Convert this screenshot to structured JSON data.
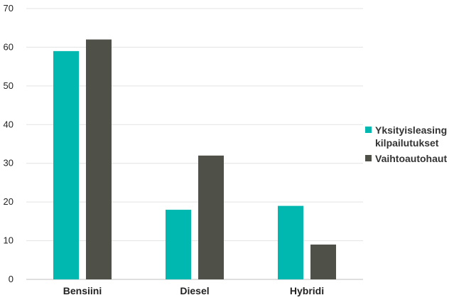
{
  "chart_data": {
    "type": "bar",
    "categories": [
      "Bensiini",
      "Diesel",
      "Hybridi"
    ],
    "series": [
      {
        "name": "Yksityisleasing kilpailutukset",
        "values": [
          59,
          18,
          19
        ],
        "color": "#00B8B0"
      },
      {
        "name": "Vaihtoautohaut",
        "values": [
          62,
          32,
          9
        ],
        "color": "#4F5048"
      }
    ],
    "ylim": [
      0,
      70
    ],
    "yticks": [
      0,
      10,
      20,
      30,
      40,
      50,
      60,
      70
    ],
    "grid": true,
    "legend_position": "right",
    "title": "",
    "xlabel": "",
    "ylabel": ""
  }
}
